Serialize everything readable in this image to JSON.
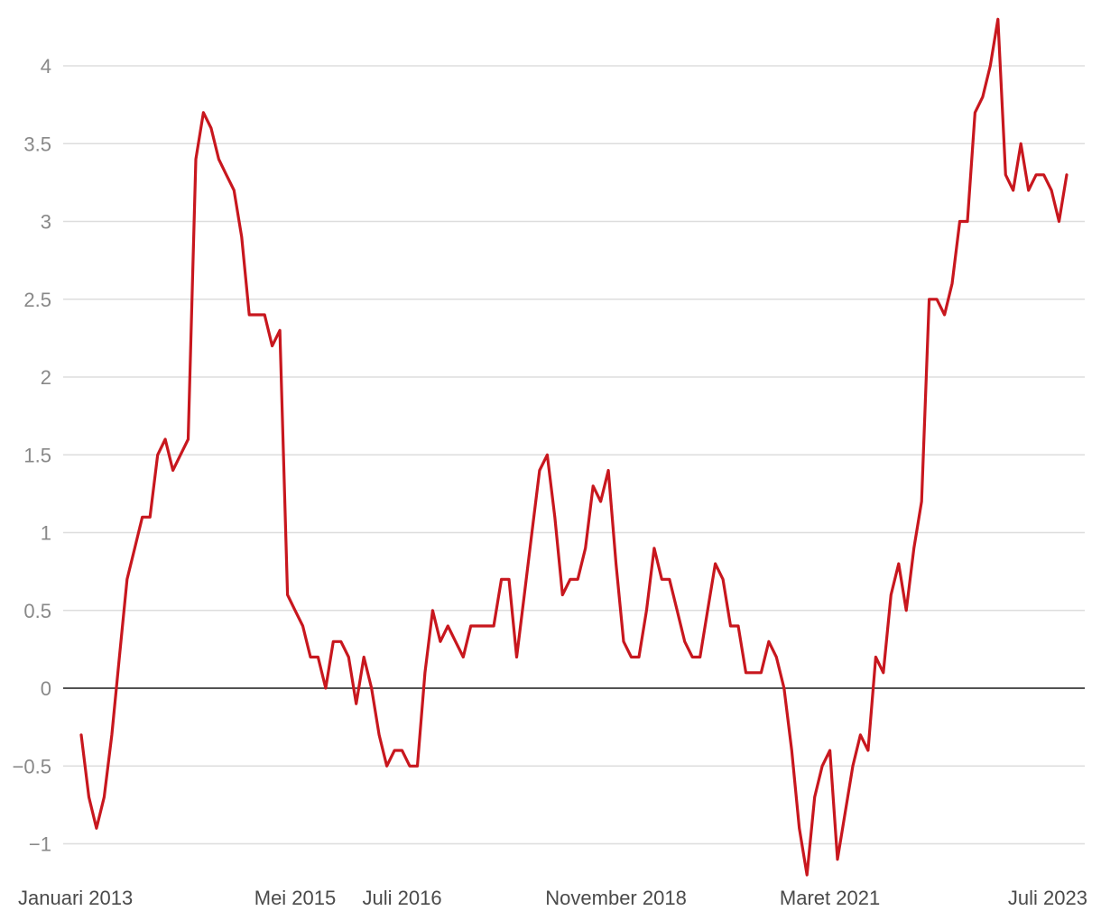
{
  "chart_data": {
    "type": "line",
    "title": "",
    "xlabel": "",
    "ylabel": "",
    "ylim": [
      -1.2,
      4.3
    ],
    "y_ticks": [
      {
        "value": 4,
        "label": "4"
      },
      {
        "value": 3.5,
        "label": "3.5"
      },
      {
        "value": 3,
        "label": "3"
      },
      {
        "value": 2.5,
        "label": "2.5"
      },
      {
        "value": 2,
        "label": "2"
      },
      {
        "value": 1.5,
        "label": "1.5"
      },
      {
        "value": 1,
        "label": "1"
      },
      {
        "value": 0.5,
        "label": "0.5"
      },
      {
        "value": 0,
        "label": "0"
      },
      {
        "value": -0.5,
        "label": "−0.5"
      },
      {
        "value": -1,
        "label": "−1"
      }
    ],
    "x_ticks": [
      {
        "index": 0,
        "label": "Januari 2013"
      },
      {
        "index": 28,
        "label": "Mei 2015"
      },
      {
        "index": 42,
        "label": "Juli 2016"
      },
      {
        "index": 70,
        "label": "November 2018"
      },
      {
        "index": 98,
        "label": "Maret 2021"
      },
      {
        "index": 126,
        "label": "Juli 2023"
      }
    ],
    "grid": true,
    "legend": "none",
    "colors": {
      "series": "#c8171e",
      "zero_line": "#1a1a1a",
      "grid": "#dddddd"
    },
    "series": [
      {
        "values": [
          -0.3,
          -0.7,
          -0.9,
          -0.7,
          -0.3,
          0.2,
          0.7,
          0.9,
          1.1,
          1.1,
          1.5,
          1.6,
          1.4,
          1.5,
          1.6,
          3.4,
          3.7,
          3.6,
          3.4,
          3.3,
          3.2,
          2.9,
          2.4,
          2.4,
          2.4,
          2.2,
          2.3,
          0.6,
          0.5,
          0.4,
          0.2,
          0.2,
          0.0,
          0.3,
          0.3,
          0.2,
          -0.1,
          0.2,
          0.0,
          -0.3,
          -0.5,
          -0.4,
          -0.4,
          -0.5,
          -0.5,
          0.1,
          0.5,
          0.3,
          0.4,
          0.3,
          0.2,
          0.4,
          0.4,
          0.4,
          0.4,
          0.7,
          0.7,
          0.2,
          0.6,
          1.0,
          1.4,
          1.5,
          1.1,
          0.6,
          0.7,
          0.7,
          0.9,
          1.3,
          1.2,
          1.4,
          0.8,
          0.3,
          0.2,
          0.2,
          0.5,
          0.9,
          0.7,
          0.7,
          0.5,
          0.3,
          0.2,
          0.2,
          0.5,
          0.8,
          0.7,
          0.4,
          0.4,
          0.1,
          0.1,
          0.1,
          0.3,
          0.2,
          0.0,
          -0.4,
          -0.9,
          -1.2,
          -0.7,
          -0.5,
          -0.4,
          -1.1,
          -0.8,
          -0.5,
          -0.3,
          -0.4,
          0.2,
          0.1,
          0.6,
          0.8,
          0.5,
          0.9,
          1.2,
          2.5,
          2.5,
          2.4,
          2.6,
          3.0,
          3.0,
          3.7,
          3.8,
          4.0,
          4.3,
          3.3,
          3.2,
          3.5,
          3.2,
          3.3,
          3.3,
          3.2,
          3.0,
          3.3
        ]
      }
    ]
  }
}
